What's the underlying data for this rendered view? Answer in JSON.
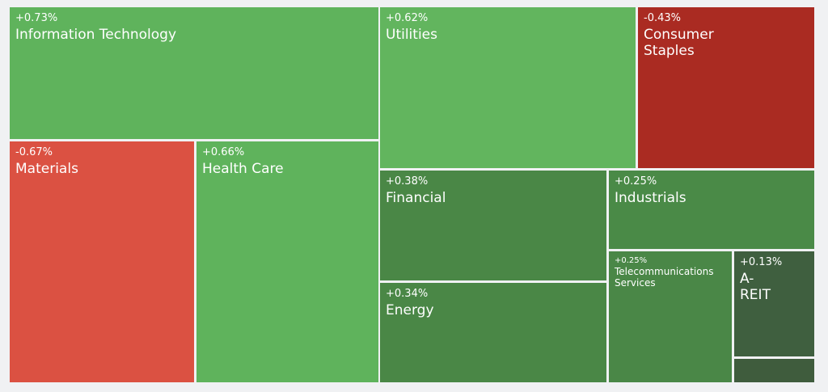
{
  "chart_data": {
    "type": "treemap",
    "categories": [
      "Information Technology",
      "Utilities",
      "Consumer Staples",
      "Materials",
      "Health Care",
      "Financial",
      "Industrials",
      "Energy",
      "Telecommunications Services",
      "A-REIT",
      null
    ],
    "values": [
      0.73,
      0.62,
      -0.43,
      -0.67,
      0.66,
      0.38,
      0.25,
      0.34,
      0.25,
      0.13,
      null
    ],
    "value_labels": [
      "+0.73%",
      "+0.62%",
      "-0.43%",
      "-0.67%",
      "+0.66%",
      "+0.38%",
      "+0.25%",
      "+0.34%",
      "+0.25%",
      "+0.13%",
      null
    ],
    "colors": [
      "#5fb35c",
      "#62b55e",
      "#aa2b22",
      "#db5142",
      "#5fb35c",
      "#4a8746",
      "#4a8a47",
      "#4a8746",
      "#4a8747",
      "#3f5f3f",
      "#3f5c3d"
    ]
  }
}
